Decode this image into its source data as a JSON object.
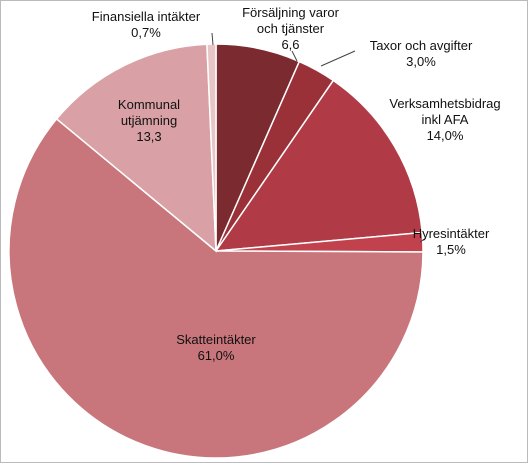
{
  "chart_data": {
    "type": "pie",
    "categories": [
      "Försäljning varor och tjänster",
      "Taxor och avgifter",
      "Verksamhetsbidrag inkl AFA",
      "Hyresintäkter",
      "Skatteintäkter",
      "Kommunal utjämning",
      "Finansiella intäkter"
    ],
    "values": [
      6.6,
      3.0,
      14.0,
      1.5,
      61.0,
      13.3,
      0.7
    ],
    "value_labels": [
      "6,6",
      "3,0%",
      "14,0%",
      "1,5%",
      "61,0%",
      "13,3",
      "0,7%"
    ],
    "colors": [
      "#7b2a30",
      "#9a3139",
      "#b03a45",
      "#c1424c",
      "#c8757b",
      "#d9a1a5",
      "#e8c5c7"
    ]
  }
}
